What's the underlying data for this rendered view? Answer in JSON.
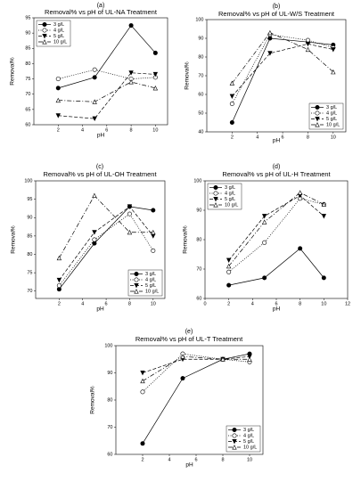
{
  "chart_data": [
    {
      "type": "line",
      "label": "(a)",
      "title": "Removal% vs pH of UL-NA Treatment",
      "x_label": "pH",
      "y_label": "Removal%",
      "x": [
        2,
        5,
        8,
        10
      ],
      "xlim": [
        0,
        11
      ],
      "xticks": [
        2,
        4,
        6,
        8,
        10
      ],
      "ylim": [
        60,
        95
      ],
      "yticks": [
        60,
        65,
        70,
        75,
        80,
        85,
        90,
        95
      ],
      "legend": "upper left",
      "series": [
        {
          "name": "3 g/L",
          "color": "#000000",
          "values": [
            72,
            75.5,
            92.5,
            83.5
          ]
        },
        {
          "name": "4 g/L",
          "color": "#000000",
          "values": [
            75,
            78,
            75,
            75.5
          ]
        },
        {
          "name": "5 g/L",
          "color": "#000000",
          "values": [
            63,
            62,
            77,
            76.5
          ]
        },
        {
          "name": "10 g/L",
          "color": "#000000",
          "values": [
            68,
            67.5,
            74,
            72
          ]
        }
      ]
    },
    {
      "type": "line",
      "label": "(b)",
      "title": "Removal% vs pH of UL-W/S Treatment",
      "x_label": "pH",
      "y_label": "Removal%",
      "x": [
        2,
        5,
        8,
        10
      ],
      "xlim": [
        0,
        11
      ],
      "xticks": [
        2,
        4,
        6,
        8,
        10
      ],
      "ylim": [
        40,
        100
      ],
      "yticks": [
        40,
        50,
        60,
        70,
        80,
        90,
        100
      ],
      "legend": "lower right",
      "series": [
        {
          "name": "3 g/L",
          "color": "#000000",
          "values": [
            45,
            90,
            88,
            86.5
          ]
        },
        {
          "name": "4 g/L",
          "color": "#000000",
          "values": [
            55,
            92,
            89,
            85
          ]
        },
        {
          "name": "5 g/L",
          "color": "#000000",
          "values": [
            59,
            82,
            87,
            84
          ]
        },
        {
          "name": "10 g/L",
          "color": "#000000",
          "values": [
            66,
            93,
            84,
            72
          ]
        }
      ]
    },
    {
      "type": "line",
      "label": "(c)",
      "title": "Removal% vs pH of UL-OH Treatment",
      "x_label": "pH",
      "y_label": "Removal%",
      "x": [
        2,
        5,
        8,
        10
      ],
      "xlim": [
        0,
        11
      ],
      "xticks": [
        2,
        4,
        6,
        8,
        10
      ],
      "ylim": [
        68,
        100
      ],
      "yticks": [
        70,
        75,
        80,
        85,
        90,
        95,
        100
      ],
      "legend": "lower right",
      "series": [
        {
          "name": "3 g/L",
          "color": "#000000",
          "values": [
            70.5,
            83,
            93,
            92
          ]
        },
        {
          "name": "4 g/L",
          "color": "#000000",
          "values": [
            71.5,
            84,
            91,
            81
          ]
        },
        {
          "name": "5 g/L",
          "color": "#000000",
          "values": [
            73,
            86,
            93,
            85
          ]
        },
        {
          "name": "10 g/L",
          "color": "#000000",
          "values": [
            79,
            96,
            86,
            86
          ]
        }
      ]
    },
    {
      "type": "line",
      "label": "(d)",
      "title": "Removal% vs pH of UL-H Treatment",
      "x_label": "pH",
      "y_label": "Removal%",
      "x": [
        2,
        5,
        8,
        10
      ],
      "xlim": [
        0,
        12
      ],
      "xticks": [
        0,
        2,
        4,
        6,
        8,
        10,
        12
      ],
      "ylim": [
        60,
        100
      ],
      "yticks": [
        60,
        70,
        80,
        90,
        100
      ],
      "legend": "upper left",
      "series": [
        {
          "name": "3 g/L",
          "color": "#000000",
          "values": [
            64.5,
            67,
            77,
            67
          ]
        },
        {
          "name": "4 g/L",
          "color": "#000000",
          "values": [
            69,
            79,
            94,
            92
          ]
        },
        {
          "name": "5 g/L",
          "color": "#000000",
          "values": [
            73,
            88,
            95,
            88
          ]
        },
        {
          "name": "10 g/L",
          "color": "#000000",
          "values": [
            71,
            86,
            96,
            92
          ]
        }
      ]
    },
    {
      "type": "line",
      "label": "(e)",
      "title": "Removal% vs pH of UL-T Treatment",
      "x_label": "pH",
      "y_label": "Removal%",
      "x": [
        2,
        5,
        8,
        10
      ],
      "xlim": [
        0,
        11
      ],
      "xticks": [
        2,
        4,
        6,
        8,
        10
      ],
      "ylim": [
        60,
        100
      ],
      "yticks": [
        60,
        70,
        80,
        90,
        100
      ],
      "legend": "lower right",
      "series": [
        {
          "name": "3 g/L",
          "color": "#000000",
          "values": [
            64,
            88,
            95,
            97
          ]
        },
        {
          "name": "4 g/L",
          "color": "#000000",
          "values": [
            83,
            97,
            95,
            94
          ]
        },
        {
          "name": "5 g/L",
          "color": "#000000",
          "values": [
            90,
            95,
            95,
            96
          ]
        },
        {
          "name": "10 g/L",
          "color": "#000000",
          "values": [
            87,
            96,
            95,
            95
          ]
        }
      ]
    }
  ]
}
